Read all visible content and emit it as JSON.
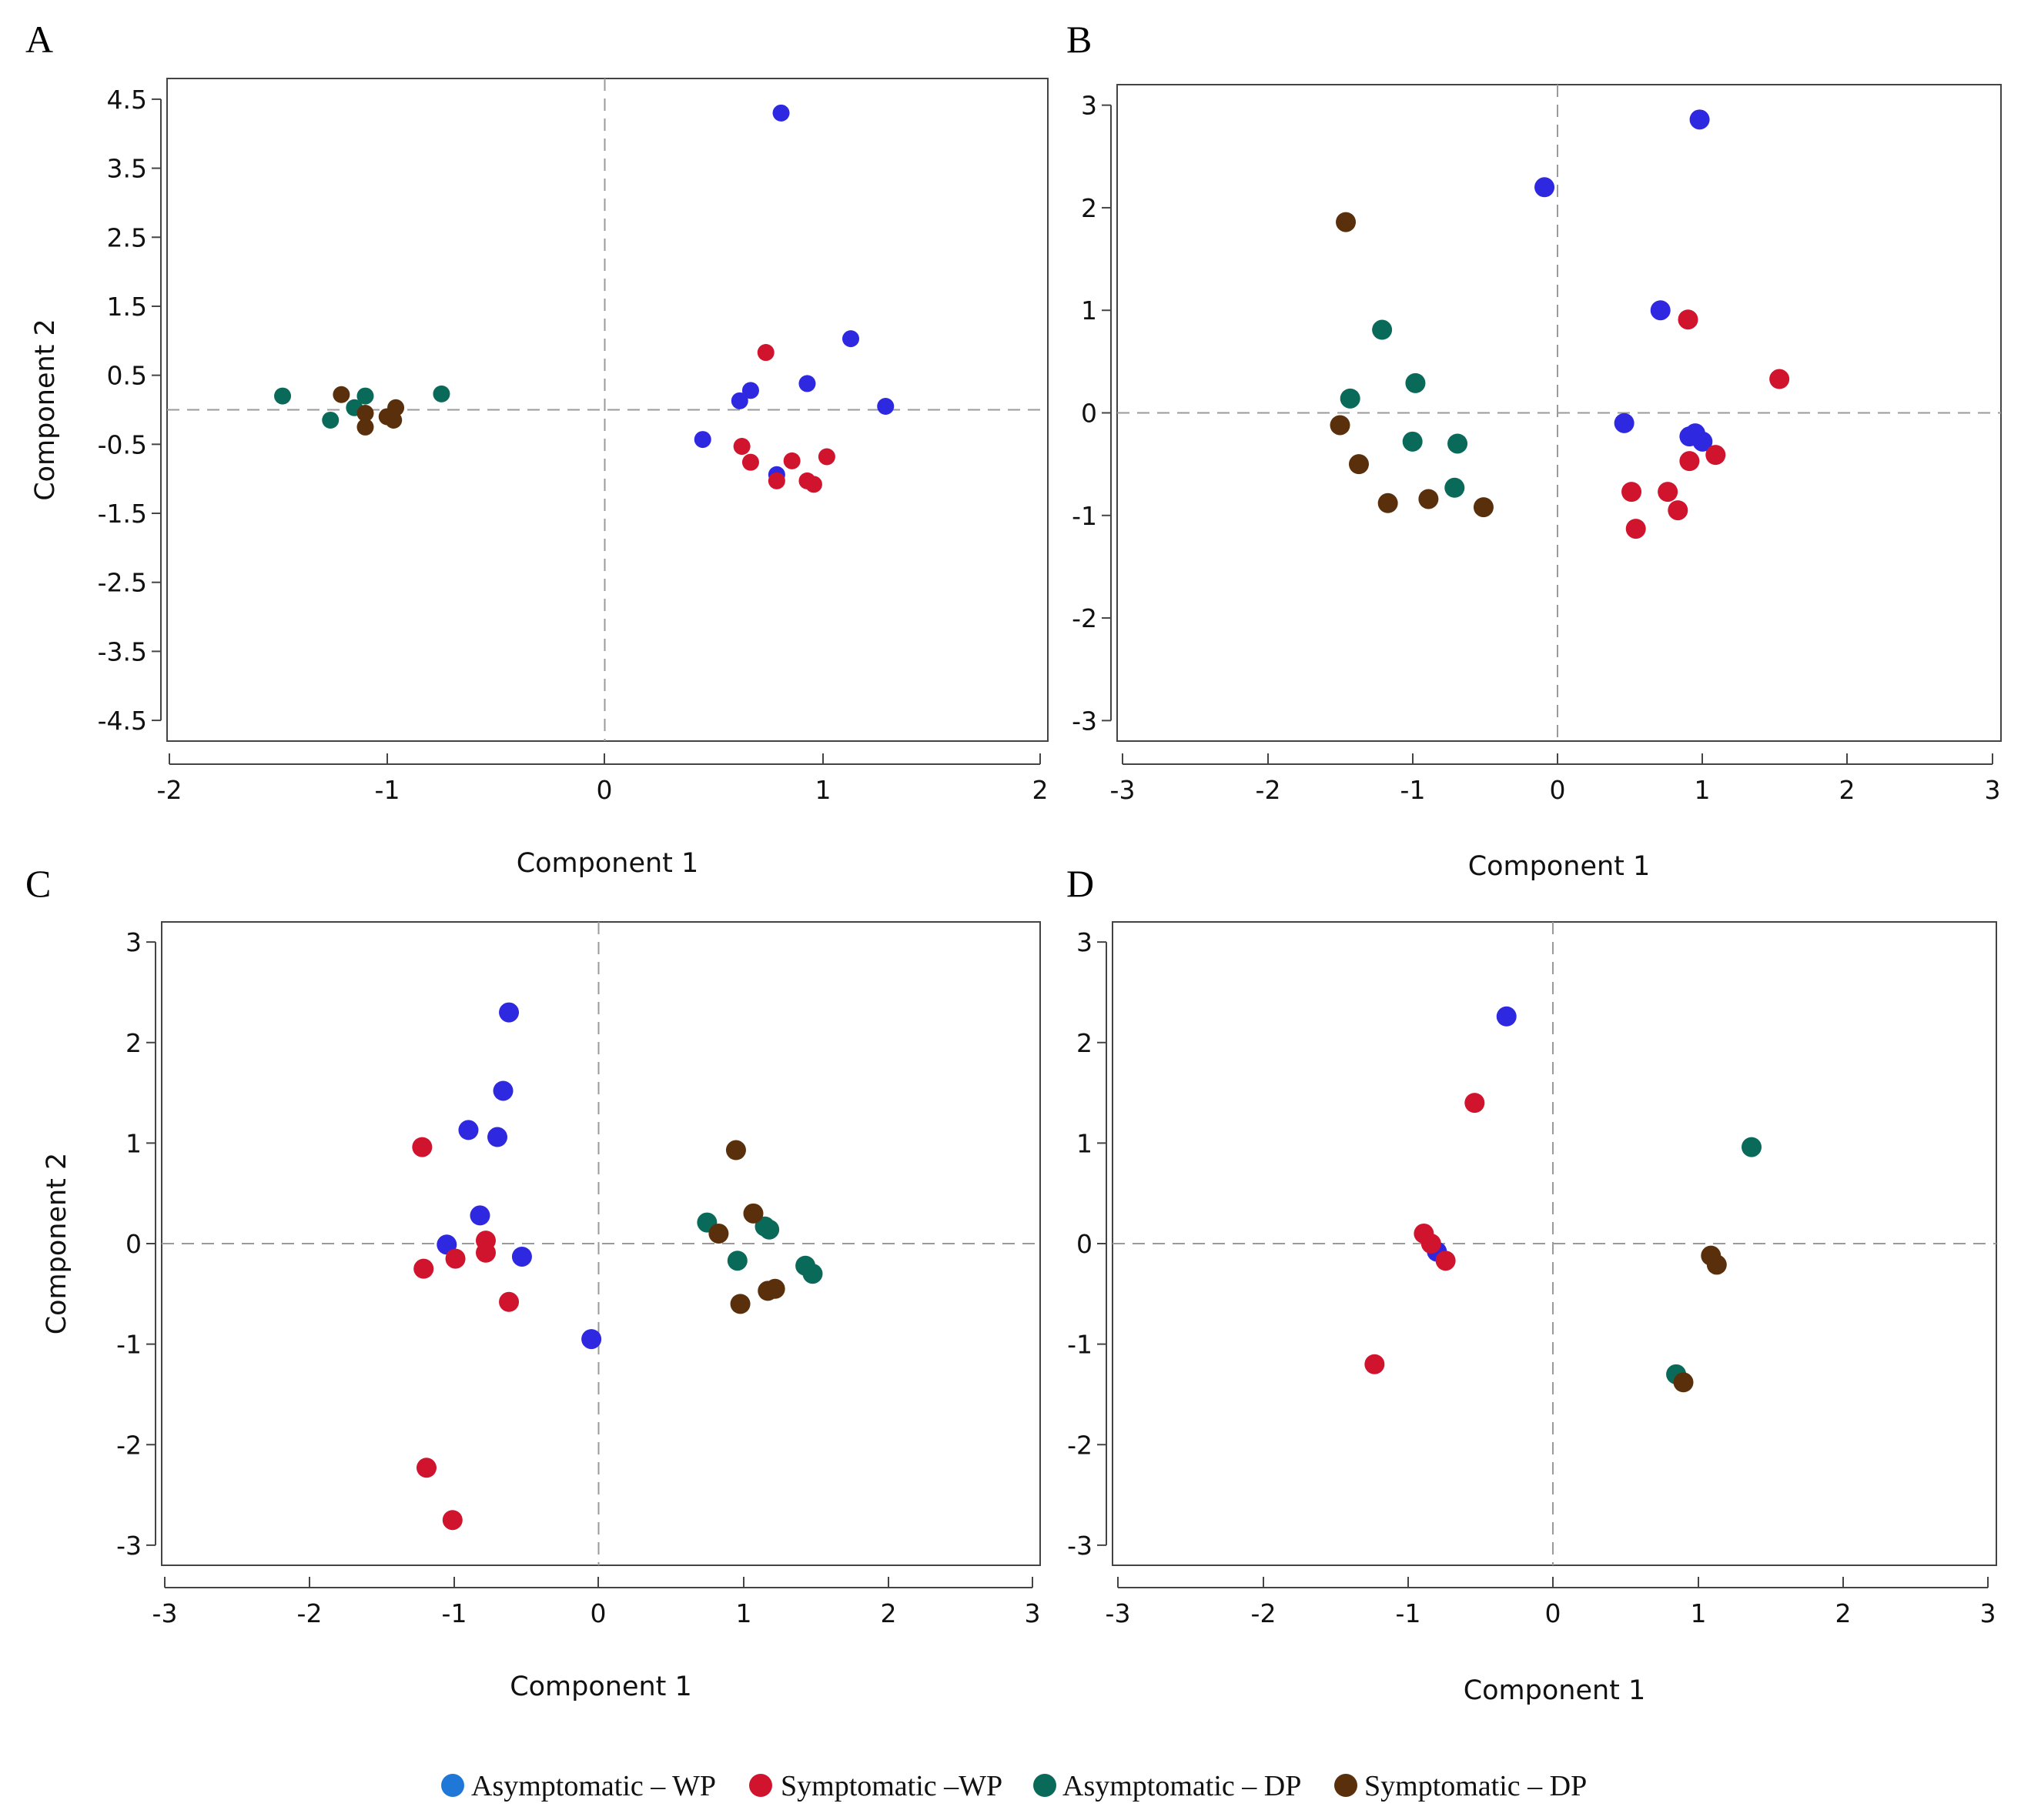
{
  "colors": {
    "Asymptomatic – WP": "#2e28e0",
    "Symptomatic –WP": "#d0142e",
    "Asymptomatic – DP": "#0a6a5a",
    "Symptomatic – DP": "#5a300c",
    "legend_asym_wp": "#1f78d8"
  },
  "legend": [
    {
      "key": "aw",
      "label": "Asymptomatic – WP"
    },
    {
      "key": "sw",
      "label": "Symptomatic –WP"
    },
    {
      "key": "ad",
      "label": "Asymptomatic – DP"
    },
    {
      "key": "sd",
      "label": "Symptomatic – DP"
    }
  ],
  "chart_data": [
    {
      "panel": "A",
      "type": "scatter",
      "xlabel": "Component 1",
      "ylabel": "Component 2",
      "xlim": [
        -2,
        2
      ],
      "ylim": [
        -4.8,
        4.8
      ],
      "xticks": [
        -2,
        -1,
        0,
        1,
        2
      ],
      "yticks": [
        4.5,
        3.5,
        2.5,
        1.5,
        0.5,
        -0.5,
        -1.5,
        -2.5,
        -3.5,
        -4.5
      ],
      "series": [
        {
          "name": "Asymptomatic – WP",
          "points": [
            [
              0.81,
              4.3
            ],
            [
              1.13,
              1.03
            ],
            [
              0.93,
              0.38
            ],
            [
              0.67,
              0.28
            ],
            [
              0.62,
              0.13
            ],
            [
              1.29,
              0.05
            ],
            [
              0.45,
              -0.43
            ],
            [
              0.79,
              -0.94
            ]
          ]
        },
        {
          "name": "Symptomatic –WP",
          "points": [
            [
              0.74,
              0.83
            ],
            [
              0.63,
              -0.53
            ],
            [
              0.67,
              -0.76
            ],
            [
              0.86,
              -0.74
            ],
            [
              1.02,
              -0.68
            ],
            [
              0.79,
              -1.03
            ],
            [
              0.93,
              -1.03
            ],
            [
              0.96,
              -1.08
            ]
          ]
        },
        {
          "name": "Asymptomatic – DP",
          "points": [
            [
              -1.48,
              0.2
            ],
            [
              -1.1,
              0.2
            ],
            [
              -0.75,
              0.23
            ],
            [
              -1.15,
              0.03
            ],
            [
              -1.26,
              -0.15
            ]
          ]
        },
        {
          "name": "Symptomatic – DP",
          "points": [
            [
              -1.21,
              0.22
            ],
            [
              -1.1,
              -0.05
            ],
            [
              -0.96,
              0.03
            ],
            [
              -1.0,
              -0.1
            ],
            [
              -0.97,
              -0.15
            ],
            [
              -1.1,
              -0.25
            ]
          ]
        }
      ]
    },
    {
      "panel": "B",
      "type": "scatter",
      "xlabel": "Component 1",
      "ylabel": "",
      "xlim": [
        -3,
        3
      ],
      "ylim": [
        -3.2,
        3.2
      ],
      "xticks": [
        -3,
        -2,
        -1,
        0,
        1,
        2,
        3
      ],
      "yticks": [
        3,
        2,
        1,
        0,
        -1,
        -2,
        -3
      ],
      "series": [
        {
          "name": "Asymptomatic – WP",
          "points": [
            [
              0.98,
              2.86
            ],
            [
              -0.09,
              2.2
            ],
            [
              0.71,
              1.0
            ],
            [
              0.46,
              -0.1
            ],
            [
              0.95,
              -0.2
            ],
            [
              0.91,
              -0.23
            ],
            [
              1.0,
              -0.28
            ]
          ]
        },
        {
          "name": "Symptomatic –WP",
          "points": [
            [
              0.9,
              0.91
            ],
            [
              1.53,
              0.33
            ],
            [
              1.09,
              -0.41
            ],
            [
              0.91,
              -0.47
            ],
            [
              0.51,
              -0.77
            ],
            [
              0.76,
              -0.77
            ],
            [
              0.83,
              -0.95
            ],
            [
              0.54,
              -1.13
            ]
          ]
        },
        {
          "name": "Asymptomatic – DP",
          "points": [
            [
              -1.21,
              0.81
            ],
            [
              -1.43,
              0.14
            ],
            [
              -0.98,
              0.29
            ],
            [
              -1.0,
              -0.28
            ],
            [
              -0.69,
              -0.3
            ],
            [
              -0.71,
              -0.73
            ]
          ]
        },
        {
          "name": "Symptomatic – DP",
          "points": [
            [
              -1.46,
              1.86
            ],
            [
              -1.5,
              -0.12
            ],
            [
              -1.37,
              -0.5
            ],
            [
              -1.17,
              -0.88
            ],
            [
              -0.89,
              -0.84
            ],
            [
              -0.51,
              -0.92
            ]
          ]
        }
      ]
    },
    {
      "panel": "C",
      "type": "scatter",
      "xlabel": "Component 1",
      "ylabel": "Component 2",
      "xlim": [
        -3,
        3
      ],
      "ylim": [
        -3.2,
        3.2
      ],
      "xticks": [
        -3,
        -2,
        -1,
        0,
        1,
        2,
        3
      ],
      "yticks": [
        3,
        2,
        1,
        0,
        -1,
        -2,
        -3
      ],
      "series": [
        {
          "name": "Asymptomatic – WP",
          "points": [
            [
              -0.62,
              2.3
            ],
            [
              -0.66,
              1.52
            ],
            [
              -0.9,
              1.13
            ],
            [
              -0.7,
              1.06
            ],
            [
              -0.82,
              0.28
            ],
            [
              -1.05,
              -0.01
            ],
            [
              -0.53,
              -0.13
            ],
            [
              -0.05,
              -0.95
            ]
          ]
        },
        {
          "name": "Symptomatic –WP",
          "points": [
            [
              -1.22,
              0.96
            ],
            [
              -0.78,
              0.03
            ],
            [
              -0.78,
              -0.09
            ],
            [
              -0.99,
              -0.15
            ],
            [
              -1.21,
              -0.25
            ],
            [
              -0.62,
              -0.58
            ],
            [
              -1.19,
              -2.23
            ],
            [
              -1.01,
              -2.75
            ]
          ]
        },
        {
          "name": "Asymptomatic – DP",
          "points": [
            [
              0.75,
              0.21
            ],
            [
              1.15,
              0.17
            ],
            [
              1.18,
              0.14
            ],
            [
              0.96,
              -0.17
            ],
            [
              1.43,
              -0.22
            ],
            [
              1.48,
              -0.3
            ]
          ]
        },
        {
          "name": "Symptomatic – DP",
          "points": [
            [
              0.95,
              0.93
            ],
            [
              1.07,
              0.3
            ],
            [
              0.83,
              0.1
            ],
            [
              1.22,
              -0.45
            ],
            [
              1.17,
              -0.47
            ],
            [
              0.98,
              -0.6
            ]
          ]
        }
      ]
    },
    {
      "panel": "D",
      "type": "scatter",
      "xlabel": "Component 1",
      "ylabel": "",
      "xlim": [
        -3,
        3
      ],
      "ylim": [
        -3.2,
        3.2
      ],
      "xticks": [
        -3,
        -2,
        -1,
        0,
        1,
        2,
        3
      ],
      "yticks": [
        3,
        2,
        1,
        0,
        -1,
        -2,
        -3
      ],
      "series": [
        {
          "name": "Asymptomatic – WP",
          "points": [
            [
              -0.32,
              2.26
            ],
            [
              -0.8,
              -0.08
            ]
          ]
        },
        {
          "name": "Symptomatic –WP",
          "points": [
            [
              -0.54,
              1.4
            ],
            [
              -0.89,
              0.1
            ],
            [
              -0.84,
              0.0
            ],
            [
              -0.74,
              -0.17
            ],
            [
              -1.23,
              -1.2
            ]
          ]
        },
        {
          "name": "Asymptomatic – DP",
          "points": [
            [
              1.37,
              0.96
            ],
            [
              0.85,
              -1.3
            ]
          ]
        },
        {
          "name": "Symptomatic – DP",
          "points": [
            [
              1.09,
              -0.12
            ],
            [
              1.13,
              -0.21
            ],
            [
              0.9,
              -1.38
            ]
          ]
        }
      ]
    }
  ]
}
